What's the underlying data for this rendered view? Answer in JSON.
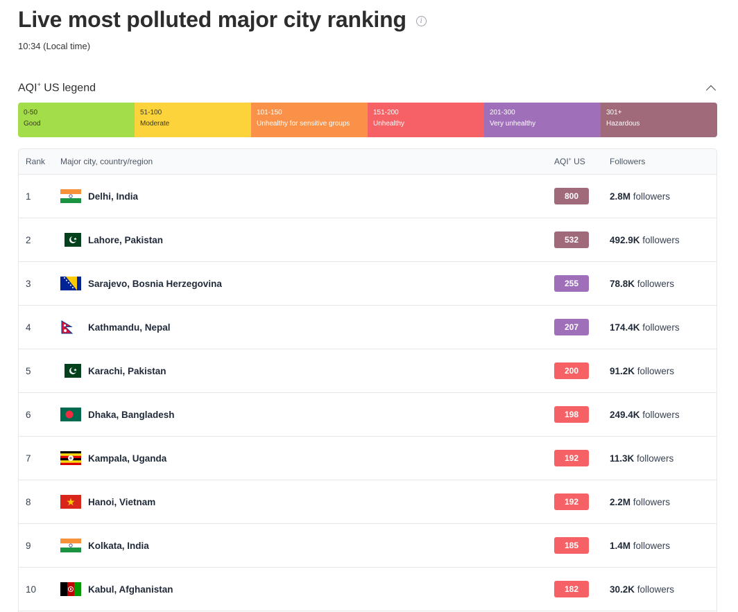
{
  "header": {
    "title": "Live most polluted major city ranking",
    "local_time": "10:34 (Local time)"
  },
  "legend": {
    "title": "AQI",
    "title_sup": "+",
    "title_suffix": " US legend",
    "segments": [
      {
        "range": "0-50",
        "label": "Good",
        "color": "#a3de4a"
      },
      {
        "range": "51-100",
        "label": "Moderate",
        "color": "#fdd33c"
      },
      {
        "range": "101-150",
        "label": "Unhealthy for sensitive groups",
        "color": "#f99148"
      },
      {
        "range": "151-200",
        "label": "Unhealthy",
        "color": "#f66165"
      },
      {
        "range": "201-300",
        "label": "Very unhealthy",
        "color": "#a06fba"
      },
      {
        "range": "301+",
        "label": "Hazardous",
        "color": "#a06a7b"
      }
    ]
  },
  "table": {
    "headers": {
      "rank": "Rank",
      "city": "Major city, country/region",
      "aqi": "AQI",
      "aqi_sup": "+",
      "aqi_suffix": " US",
      "followers": "Followers"
    },
    "followers_suffix": " followers",
    "rows": [
      {
        "rank": "1",
        "city": "Delhi, India",
        "flag": "india-flag-icon",
        "aqi": "800",
        "aqi_color": "#a06a7b",
        "followers": "2.8M"
      },
      {
        "rank": "2",
        "city": "Lahore, Pakistan",
        "flag": "pakistan-flag-icon",
        "aqi": "532",
        "aqi_color": "#a06a7b",
        "followers": "492.9K"
      },
      {
        "rank": "3",
        "city": "Sarajevo, Bosnia Herzegovina",
        "flag": "bosnia-flag-icon",
        "aqi": "255",
        "aqi_color": "#a06fba",
        "followers": "78.8K"
      },
      {
        "rank": "4",
        "city": "Kathmandu, Nepal",
        "flag": "nepal-flag-icon",
        "aqi": "207",
        "aqi_color": "#a06fba",
        "followers": "174.4K"
      },
      {
        "rank": "5",
        "city": "Karachi, Pakistan",
        "flag": "pakistan-flag-icon",
        "aqi": "200",
        "aqi_color": "#f66165",
        "followers": "91.2K"
      },
      {
        "rank": "6",
        "city": "Dhaka, Bangladesh",
        "flag": "bangladesh-flag-icon",
        "aqi": "198",
        "aqi_color": "#f66165",
        "followers": "249.4K"
      },
      {
        "rank": "7",
        "city": "Kampala, Uganda",
        "flag": "uganda-flag-icon",
        "aqi": "192",
        "aqi_color": "#f66165",
        "followers": "11.3K"
      },
      {
        "rank": "8",
        "city": "Hanoi, Vietnam",
        "flag": "vietnam-flag-icon",
        "aqi": "192",
        "aqi_color": "#f66165",
        "followers": "2.2M"
      },
      {
        "rank": "9",
        "city": "Kolkata, India",
        "flag": "india-flag-icon",
        "aqi": "185",
        "aqi_color": "#f66165",
        "followers": "1.4M"
      },
      {
        "rank": "10",
        "city": "Kabul, Afghanistan",
        "flag": "afghanistan-flag-icon",
        "aqi": "182",
        "aqi_color": "#f66165",
        "followers": "30.2K"
      }
    ]
  }
}
